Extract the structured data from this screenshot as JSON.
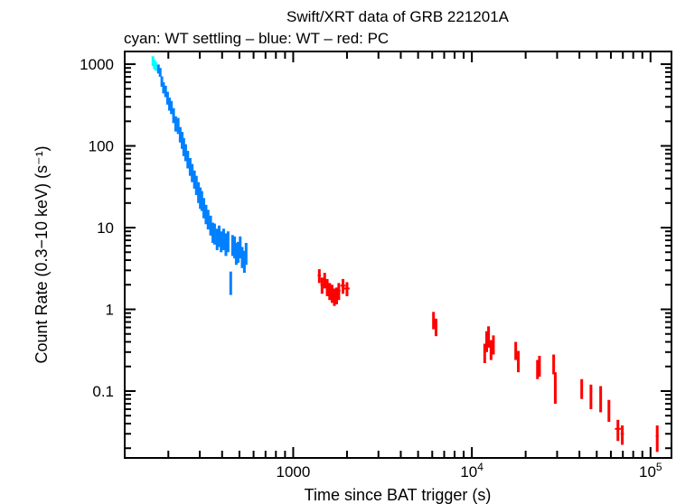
{
  "chart_data": {
    "type": "scatter",
    "title": "Swift/XRT data of GRB 221201A",
    "subtitle": "cyan: WT settling – blue: WT – red: PC",
    "xlabel": "Time since BAT trigger (s)",
    "ylabel": "Count Rate (0.3−10 keV) (s⁻¹)",
    "xscale": "log",
    "yscale": "log",
    "xlim": [
      114,
      131000
    ],
    "ylim": [
      0.0152,
      1430
    ],
    "grid": false,
    "x_ticks": [
      {
        "value": 1000,
        "label": "1000"
      },
      {
        "value": 10000,
        "label": "10",
        "exp": "4"
      },
      {
        "value": 100000,
        "label": "10",
        "exp": "5"
      }
    ],
    "y_ticks": [
      {
        "value": 1000,
        "label": "1000"
      },
      {
        "value": 100,
        "label": "100"
      },
      {
        "value": 10,
        "label": "10"
      },
      {
        "value": 1,
        "label": "1"
      },
      {
        "value": 0.1,
        "label": "0.1"
      }
    ],
    "point_format": "[time_s, rate, rate_err, time_err]",
    "series": [
      {
        "name": "WT settling",
        "color": "#00ffff",
        "points": [
          [
            164,
            1100,
            150,
            2
          ],
          [
            167,
            1000,
            130,
            2
          ],
          [
            170,
            950,
            120,
            2
          ]
        ]
      },
      {
        "name": "WT",
        "color": "#0080ff",
        "points": [
          [
            176,
            880,
            110,
            2
          ],
          [
            180,
            800,
            100,
            2
          ],
          [
            184,
            620,
            90,
            2
          ],
          [
            188,
            520,
            80,
            2
          ],
          [
            193,
            470,
            75,
            2
          ],
          [
            198,
            390,
            70,
            2
          ],
          [
            203,
            330,
            60,
            2
          ],
          [
            208,
            300,
            55,
            2
          ],
          [
            214,
            240,
            50,
            2
          ],
          [
            220,
            190,
            40,
            2
          ],
          [
            227,
            180,
            40,
            2
          ],
          [
            233,
            140,
            30,
            2
          ],
          [
            239,
            120,
            28,
            2
          ],
          [
            244,
            100,
            25,
            2
          ],
          [
            250,
            85,
            20,
            2
          ],
          [
            257,
            70,
            17,
            2
          ],
          [
            265,
            57,
            14,
            3
          ],
          [
            272,
            48,
            12,
            3
          ],
          [
            280,
            40,
            10,
            3
          ],
          [
            287,
            34,
            9,
            3
          ],
          [
            295,
            28,
            8,
            3
          ],
          [
            302,
            24,
            7,
            3
          ],
          [
            308,
            22,
            6,
            3
          ],
          [
            316,
            18,
            5,
            3
          ],
          [
            325,
            15,
            4,
            3
          ],
          [
            334,
            13,
            3.5,
            3
          ],
          [
            345,
            11,
            3,
            4
          ],
          [
            355,
            9,
            2.5,
            4
          ],
          [
            363,
            8.7,
            2.5,
            4
          ],
          [
            375,
            7.5,
            2.2,
            4
          ],
          [
            385,
            8.2,
            2.4,
            4
          ],
          [
            395,
            7,
            2,
            4
          ],
          [
            408,
            7.5,
            2.2,
            5
          ],
          [
            420,
            6.5,
            2,
            5
          ],
          [
            432,
            7,
            2,
            5
          ],
          [
            447,
            2.2,
            0.7,
            4
          ],
          [
            458,
            6.3,
            1.8,
            5
          ],
          [
            470,
            6,
            1.8,
            5
          ],
          [
            480,
            5,
            1.5,
            5
          ],
          [
            492,
            5.2,
            1.5,
            5
          ],
          [
            505,
            6,
            1.8,
            5
          ],
          [
            518,
            4.5,
            1.3,
            5
          ],
          [
            533,
            4,
            1.2,
            5
          ],
          [
            545,
            5,
            1.5,
            5
          ]
        ]
      },
      {
        "name": "PC",
        "color": "#ff0000",
        "points": [
          [
            1400,
            2.6,
            0.5,
            30
          ],
          [
            1450,
            2.0,
            0.45,
            30
          ],
          [
            1500,
            2.3,
            0.5,
            30
          ],
          [
            1550,
            1.9,
            0.45,
            30
          ],
          [
            1600,
            1.7,
            0.4,
            30
          ],
          [
            1650,
            1.6,
            0.4,
            30
          ],
          [
            1700,
            1.45,
            0.35,
            30
          ],
          [
            1750,
            1.5,
            0.35,
            30
          ],
          [
            1800,
            1.7,
            0.4,
            40
          ],
          [
            1900,
            1.95,
            0.4,
            60
          ],
          [
            2000,
            1.8,
            0.35,
            70
          ],
          [
            6100,
            0.75,
            0.18,
            80
          ],
          [
            6300,
            0.62,
            0.15,
            80
          ],
          [
            11800,
            0.3,
            0.08,
            150
          ],
          [
            12100,
            0.42,
            0.12,
            150
          ],
          [
            12400,
            0.48,
            0.14,
            150
          ],
          [
            12800,
            0.33,
            0.09,
            150
          ],
          [
            13200,
            0.38,
            0.1,
            150
          ],
          [
            17600,
            0.32,
            0.08,
            250
          ],
          [
            18200,
            0.24,
            0.07,
            250
          ],
          [
            23300,
            0.19,
            0.05,
            300
          ],
          [
            23900,
            0.21,
            0.06,
            300
          ],
          [
            28700,
            0.22,
            0.06,
            300
          ],
          [
            29300,
            0.12,
            0.05,
            300
          ],
          [
            41200,
            0.11,
            0.03,
            500
          ],
          [
            46400,
            0.09,
            0.03,
            500
          ],
          [
            52600,
            0.085,
            0.03,
            600
          ],
          [
            58500,
            0.06,
            0.018,
            700
          ],
          [
            65700,
            0.0345,
            0.01,
            2500
          ],
          [
            69500,
            0.03,
            0.008,
            1500
          ],
          [
            109000,
            0.028,
            0.01,
            2000
          ]
        ]
      }
    ]
  }
}
